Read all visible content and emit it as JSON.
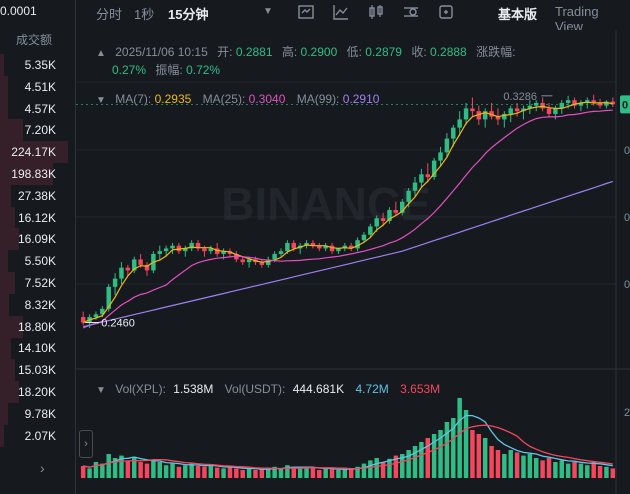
{
  "book": {
    "top_price": "0.0001",
    "column_label": "成交额",
    "values": [
      "5.35K",
      "4.51K",
      "4.57K",
      "7.20K",
      "224.17K",
      "198.83K",
      "27.38K",
      "16.12K",
      "16.09K",
      "5.50K",
      "7.52K",
      "8.32K",
      "18.80K",
      "14.10K",
      "15.03K",
      "18.20K",
      "9.78K",
      "2.07K"
    ],
    "fills": [
      0.05,
      0.1,
      0.1,
      0.3,
      0.9,
      0.7,
      0.15,
      0.2,
      0.25,
      0.1,
      0.2,
      0.12,
      0.3,
      0.15,
      0.2,
      0.25,
      0.1,
      0.05
    ],
    "more_icon": "chevron-right-icon"
  },
  "toolbar": {
    "time": "分时",
    "sec": "1秒",
    "interval": "15分钟",
    "dropdown_icon": "caret-down-icon",
    "icons": [
      "indicator-icon",
      "line-chart-icon",
      "candle-type-icon",
      "settings-icon",
      "fullscreen-icon"
    ],
    "basic": "基本版",
    "tradingview": "Trading View"
  },
  "ohlc": {
    "datetime": "2025/11/06 10:15",
    "open_label": "开:",
    "open": "0.2881",
    "high_label": "高:",
    "high": "0.2900",
    "low_label": "低:",
    "low": "0.2879",
    "close_label": "收:",
    "close": "0.2888",
    "change_label": "涨跌幅:",
    "change": "0.27%",
    "amp_label": "振幅:",
    "amp": "0.72%"
  },
  "ma": {
    "ma7_label": "MA(7):",
    "ma7": "0.2935",
    "ma25_label": "MA(25):",
    "ma25": "0.3040",
    "ma99_label": "MA(99):",
    "ma99": "0.2910",
    "colors": {
      "ma7": "#f0b90b",
      "ma25": "#e44fc1",
      "ma99": "#a07ff0"
    }
  },
  "vol": {
    "xpl_label": "Vol(XPL):",
    "xpl": "1.538M",
    "usdt_label": "Vol(USDT):",
    "usdt": "444.681K",
    "ma5": "4.72M",
    "ma10": "3.653M"
  },
  "annotations": {
    "high_mark": "0.3286",
    "low_mark": "0.2460"
  },
  "right_axis": {
    "labels": [
      "0",
      "0",
      "0",
      "0"
    ],
    "vol_label": "2",
    "current_tag": "0"
  },
  "watermark": "BINANCE",
  "colors": {
    "up": "#2ebd85",
    "down": "#f6465d",
    "bg": "#161a1e",
    "grid": "#22272e",
    "vol_ma5": "#5fc4e8",
    "vol_ma10": "#f6465d"
  },
  "chart_data": {
    "type": "candlestick",
    "interval": "15分钟",
    "price_range": [
      0.236,
      0.338
    ],
    "candles": [
      [
        0.248,
        0.25,
        0.245,
        0.246
      ],
      [
        0.246,
        0.249,
        0.244,
        0.248
      ],
      [
        0.248,
        0.25,
        0.247,
        0.249
      ],
      [
        0.249,
        0.252,
        0.248,
        0.251
      ],
      [
        0.251,
        0.26,
        0.25,
        0.259
      ],
      [
        0.259,
        0.264,
        0.256,
        0.262
      ],
      [
        0.262,
        0.268,
        0.26,
        0.266
      ],
      [
        0.266,
        0.267,
        0.263,
        0.265
      ],
      [
        0.265,
        0.27,
        0.264,
        0.269
      ],
      [
        0.269,
        0.271,
        0.266,
        0.267
      ],
      [
        0.267,
        0.268,
        0.263,
        0.265
      ],
      [
        0.265,
        0.272,
        0.264,
        0.271
      ],
      [
        0.271,
        0.274,
        0.269,
        0.272
      ],
      [
        0.272,
        0.274,
        0.27,
        0.273
      ],
      [
        0.273,
        0.275,
        0.271,
        0.274
      ],
      [
        0.274,
        0.275,
        0.271,
        0.272
      ],
      [
        0.272,
        0.274,
        0.27,
        0.273
      ],
      [
        0.273,
        0.276,
        0.272,
        0.275
      ],
      [
        0.275,
        0.276,
        0.272,
        0.273
      ],
      [
        0.273,
        0.274,
        0.27,
        0.272
      ],
      [
        0.272,
        0.274,
        0.271,
        0.273
      ],
      [
        0.273,
        0.275,
        0.27,
        0.271
      ],
      [
        0.271,
        0.273,
        0.269,
        0.272
      ],
      [
        0.272,
        0.273,
        0.27,
        0.271
      ],
      [
        0.271,
        0.272,
        0.268,
        0.269
      ],
      [
        0.269,
        0.27,
        0.267,
        0.268
      ],
      [
        0.268,
        0.27,
        0.266,
        0.269
      ],
      [
        0.269,
        0.27,
        0.267,
        0.268
      ],
      [
        0.268,
        0.269,
        0.266,
        0.267
      ],
      [
        0.267,
        0.27,
        0.266,
        0.269
      ],
      [
        0.269,
        0.272,
        0.268,
        0.271
      ],
      [
        0.271,
        0.273,
        0.27,
        0.272
      ],
      [
        0.272,
        0.276,
        0.271,
        0.275
      ],
      [
        0.275,
        0.276,
        0.272,
        0.273
      ],
      [
        0.273,
        0.275,
        0.271,
        0.274
      ],
      [
        0.274,
        0.276,
        0.273,
        0.275
      ],
      [
        0.275,
        0.276,
        0.273,
        0.274
      ],
      [
        0.274,
        0.275,
        0.272,
        0.273
      ],
      [
        0.273,
        0.275,
        0.272,
        0.274
      ],
      [
        0.274,
        0.275,
        0.271,
        0.272
      ],
      [
        0.272,
        0.273,
        0.271,
        0.273
      ],
      [
        0.273,
        0.275,
        0.272,
        0.274
      ],
      [
        0.274,
        0.275,
        0.272,
        0.273
      ],
      [
        0.273,
        0.277,
        0.272,
        0.276
      ],
      [
        0.276,
        0.279,
        0.275,
        0.278
      ],
      [
        0.278,
        0.282,
        0.277,
        0.281
      ],
      [
        0.281,
        0.285,
        0.279,
        0.284
      ],
      [
        0.284,
        0.286,
        0.281,
        0.283
      ],
      [
        0.283,
        0.288,
        0.282,
        0.287
      ],
      [
        0.287,
        0.29,
        0.285,
        0.286
      ],
      [
        0.286,
        0.291,
        0.285,
        0.29
      ],
      [
        0.29,
        0.295,
        0.288,
        0.294
      ],
      [
        0.294,
        0.299,
        0.292,
        0.297
      ],
      [
        0.297,
        0.302,
        0.295,
        0.3
      ],
      [
        0.3,
        0.304,
        0.297,
        0.299
      ],
      [
        0.299,
        0.306,
        0.298,
        0.305
      ],
      [
        0.305,
        0.31,
        0.303,
        0.308
      ],
      [
        0.308,
        0.315,
        0.306,
        0.313
      ],
      [
        0.313,
        0.318,
        0.31,
        0.317
      ],
      [
        0.317,
        0.323,
        0.314,
        0.32
      ],
      [
        0.32,
        0.326,
        0.318,
        0.324
      ],
      [
        0.324,
        0.328,
        0.321,
        0.323
      ],
      [
        0.323,
        0.325,
        0.318,
        0.32
      ],
      [
        0.32,
        0.324,
        0.317,
        0.323
      ],
      [
        0.323,
        0.326,
        0.32,
        0.321
      ],
      [
        0.321,
        0.324,
        0.318,
        0.32
      ],
      [
        0.32,
        0.323,
        0.317,
        0.322
      ],
      [
        0.322,
        0.325,
        0.319,
        0.324
      ],
      [
        0.324,
        0.326,
        0.321,
        0.323
      ],
      [
        0.323,
        0.325,
        0.32,
        0.324
      ],
      [
        0.324,
        0.327,
        0.322,
        0.325
      ],
      [
        0.325,
        0.327,
        0.323,
        0.326
      ],
      [
        0.326,
        0.328,
        0.323,
        0.324
      ],
      [
        0.324,
        0.326,
        0.321,
        0.322
      ],
      [
        0.322,
        0.325,
        0.32,
        0.324
      ],
      [
        0.324,
        0.327,
        0.322,
        0.326
      ],
      [
        0.326,
        0.3286,
        0.324,
        0.327
      ],
      [
        0.327,
        0.328,
        0.324,
        0.325
      ],
      [
        0.325,
        0.327,
        0.323,
        0.326
      ],
      [
        0.326,
        0.328,
        0.324,
        0.327
      ],
      [
        0.327,
        0.329,
        0.325,
        0.326
      ],
      [
        0.326,
        0.3275,
        0.324,
        0.325
      ],
      [
        0.325,
        0.327,
        0.324,
        0.3265
      ],
      [
        0.3265,
        0.328,
        0.3245,
        0.3255
      ]
    ],
    "volumes": [
      0.15,
      0.12,
      0.2,
      0.18,
      0.3,
      0.25,
      0.28,
      0.22,
      0.26,
      0.2,
      0.18,
      0.22,
      0.2,
      0.16,
      0.18,
      0.14,
      0.16,
      0.18,
      0.15,
      0.14,
      0.16,
      0.13,
      0.12,
      0.14,
      0.12,
      0.1,
      0.12,
      0.1,
      0.11,
      0.12,
      0.14,
      0.12,
      0.16,
      0.14,
      0.12,
      0.14,
      0.12,
      0.1,
      0.12,
      0.11,
      0.1,
      0.12,
      0.11,
      0.14,
      0.18,
      0.22,
      0.25,
      0.2,
      0.24,
      0.28,
      0.3,
      0.35,
      0.4,
      0.45,
      0.5,
      0.55,
      0.6,
      0.7,
      0.75,
      1.0,
      0.85,
      0.6,
      0.55,
      0.5,
      0.4,
      0.35,
      0.3,
      0.35,
      0.32,
      0.28,
      0.3,
      0.25,
      0.22,
      0.25,
      0.2,
      0.22,
      0.18,
      0.2,
      0.18,
      0.16,
      0.2,
      0.15,
      0.14,
      0.12
    ]
  }
}
